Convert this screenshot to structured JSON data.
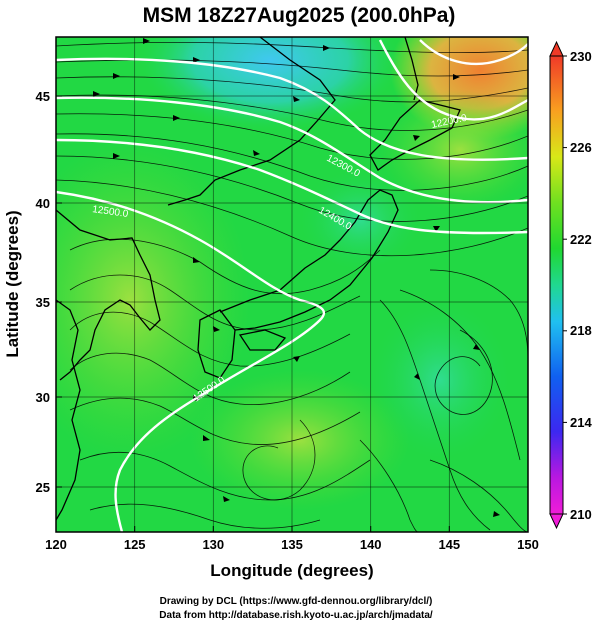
{
  "title": "MSM 18Z27Aug2025 (200.0hPa)",
  "x_axis": {
    "label": "Longitude (degrees)",
    "ticks": [
      "120",
      "125",
      "130",
      "135",
      "140",
      "145",
      "150"
    ]
  },
  "y_axis": {
    "label": "Latitude  (degrees)",
    "ticks": [
      "25",
      "30",
      "35",
      "40",
      "45"
    ]
  },
  "colorbar": {
    "ticks": [
      "210",
      "214",
      "218",
      "222",
      "226",
      "230"
    ],
    "min": 210,
    "max": 230
  },
  "contour_labels": [
    "12500.0",
    "12400.0",
    "12300.0",
    "12200.0"
  ],
  "credits": {
    "line1": "Drawing by DCL (https://www.gfd-dennou.org/library/dcl/)",
    "line2": "Data from http://database.rish.kyoto-u.ac.jp/arch/jmadata/"
  },
  "colors": {
    "cool": "#2ad0f0",
    "mid": "#1ddc3c",
    "warm": "#f07020",
    "contour": "#ffffff",
    "land": "#000000"
  }
}
